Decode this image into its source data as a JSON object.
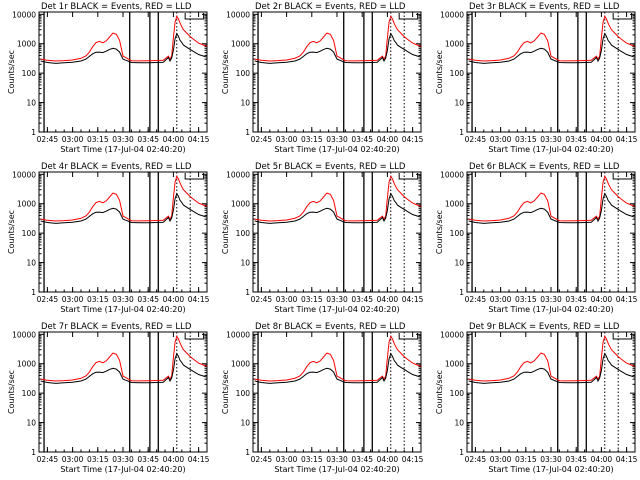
{
  "chart_data": {
    "type": "line",
    "figure_layout": "3x3 grid of lightcurve panels",
    "panels": [
      {
        "title": "Det 1r BLACK = Events, RED = LLD",
        "color_events": "#000000",
        "color_lld": "#ff0000"
      },
      {
        "title": "Det 2r BLACK = Events, RED = LLD",
        "color_events": "#000000",
        "color_lld": "#ff0000"
      },
      {
        "title": "Det 3r BLACK = Events, RED = LLD",
        "color_events": "#000000",
        "color_lld": "#ff0000"
      },
      {
        "title": "Det 4r BLACK = Events, RED = LLD",
        "color_events": "#000000",
        "color_lld": "#ff0000"
      },
      {
        "title": "Det 5r BLACK = Events, RED = LLD",
        "color_events": "#000000",
        "color_lld": "#ff0000"
      },
      {
        "title": "Det 6r BLACK = Events, RED = LLD",
        "color_events": "#000000",
        "color_lld": "#ff0000"
      },
      {
        "title": "Det 7r BLACK = Events, RED = LLD",
        "color_events": "#000000",
        "color_lld": "#ff0000"
      },
      {
        "title": "Det 8r BLACK = Events, RED = LLD",
        "color_events": "#000000",
        "color_lld": "#ff0000"
      },
      {
        "title": "Det 9r BLACK = Events, RED = LLD",
        "color_events": "#000000",
        "color_lld": "#ff0000"
      }
    ],
    "xlabel": "Start Time (17-Jul-04 02:40:20)",
    "ylabel": "Counts/sec",
    "x_unit": "minutes since 02:40",
    "xlim": [
      0,
      100
    ],
    "x_ticks": [
      5,
      20,
      35,
      50,
      65,
      80,
      95
    ],
    "x_tick_labels": [
      "02:45",
      "03:00",
      "03:15",
      "03:30",
      "03:45",
      "04:00",
      "04:15"
    ],
    "yscale": "log",
    "ylim": [
      1,
      12000
    ],
    "y_ticks": [
      1,
      10,
      100,
      1000,
      10000
    ],
    "y_tick_labels": [
      "1",
      "10",
      "100",
      "1000",
      "10000"
    ],
    "solid_markers_min": [
      3,
      54,
      66,
      71
    ],
    "dotted_markers_min": [
      82,
      90
    ],
    "legend_box_min": [
      87,
      98
    ],
    "x": [
      1,
      5,
      10,
      15,
      20,
      25,
      28,
      30,
      32,
      34,
      36,
      38,
      40,
      42,
      44,
      46,
      48,
      50,
      55,
      60,
      65,
      70,
      74,
      76,
      77,
      78,
      79,
      80,
      81,
      82,
      83,
      84,
      85,
      86,
      88,
      90,
      92,
      95,
      98,
      100
    ],
    "series": [
      {
        "name": "Events",
        "values": [
          260,
          230,
          215,
          225,
          235,
          260,
          300,
          370,
          460,
          510,
          520,
          500,
          560,
          640,
          700,
          660,
          520,
          300,
          230,
          225,
          225,
          230,
          235,
          300,
          340,
          260,
          330,
          600,
          1500,
          2200,
          1800,
          1300,
          1100,
          900,
          760,
          640,
          540,
          430,
          380,
          350
        ]
      },
      {
        "name": "LLD",
        "values": [
          300,
          275,
          260,
          268,
          280,
          320,
          390,
          520,
          800,
          1100,
          1200,
          1080,
          1250,
          1700,
          2300,
          2100,
          1300,
          380,
          265,
          262,
          265,
          270,
          275,
          340,
          380,
          300,
          380,
          1600,
          5500,
          8500,
          7000,
          5000,
          3800,
          3000,
          2300,
          1750,
          1400,
          1050,
          900,
          820
        ]
      }
    ]
  }
}
